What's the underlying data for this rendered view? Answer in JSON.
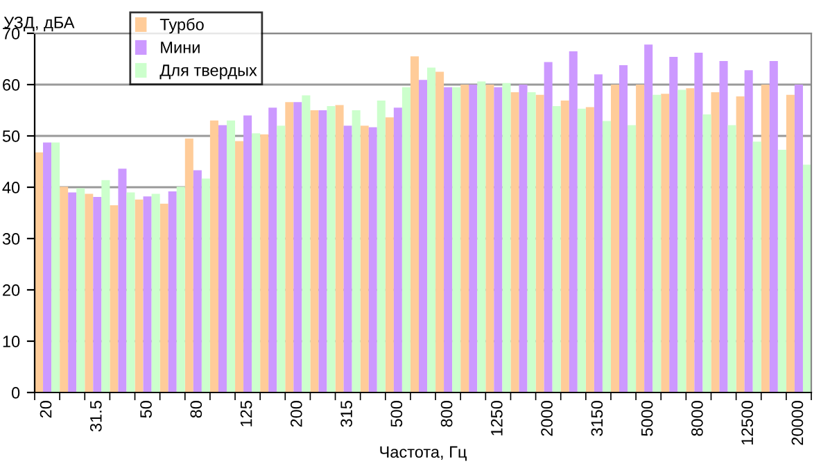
{
  "chart_data": {
    "type": "bar",
    "ylabel": "УЗД, дБА",
    "xlabel": "Частота, Гц",
    "categories": [
      "20",
      null,
      "31.5",
      null,
      "50",
      null,
      "80",
      null,
      "125",
      null,
      "200",
      null,
      "315",
      null,
      "500",
      null,
      "800",
      null,
      "1250",
      null,
      "2000",
      null,
      "3150",
      null,
      "5000",
      null,
      "8000",
      null,
      "12500",
      null,
      "20000"
    ],
    "series": [
      {
        "name": "Турбо",
        "color": "#ffcc99",
        "values": [
          46.8,
          40.1,
          38.7,
          36.5,
          37.6,
          36.8,
          49.5,
          53.0,
          49.0,
          50.3,
          56.6,
          55.0,
          56.0,
          52.0,
          53.6,
          65.5,
          62.5,
          60.0,
          60.0,
          58.5,
          58.0,
          56.9,
          55.6,
          60.0,
          60.0,
          58.2,
          59.3,
          58.5,
          57.7,
          60.0,
          58.0
        ]
      },
      {
        "name": "Мини",
        "color": "#cc99ff",
        "values": [
          48.7,
          39.0,
          38.1,
          43.6,
          38.2,
          39.2,
          43.3,
          52.1,
          54.0,
          55.5,
          56.6,
          55.0,
          52.0,
          51.7,
          55.5,
          60.9,
          59.5,
          60.0,
          59.5,
          60.0,
          64.4,
          66.5,
          62.0,
          63.8,
          67.8,
          65.4,
          66.2,
          64.6,
          62.8,
          64.6,
          60.0
        ]
      },
      {
        "name": "Для твердых",
        "color": "#ccffcc",
        "values": [
          48.7,
          39.8,
          41.4,
          39.0,
          38.7,
          40.1,
          41.7,
          53.0,
          50.5,
          52.0,
          57.9,
          55.8,
          55.0,
          56.9,
          59.5,
          63.3,
          59.5,
          60.6,
          60.3,
          58.5,
          55.8,
          55.3,
          52.9,
          52.1,
          58.0,
          59.0,
          54.2,
          52.1,
          48.9,
          47.3,
          44.4
        ]
      }
    ],
    "ylim": [
      0,
      70
    ],
    "yticks": [
      0,
      10,
      20,
      30,
      40,
      50,
      60,
      70
    ],
    "grid": "y",
    "legend": "top left"
  }
}
